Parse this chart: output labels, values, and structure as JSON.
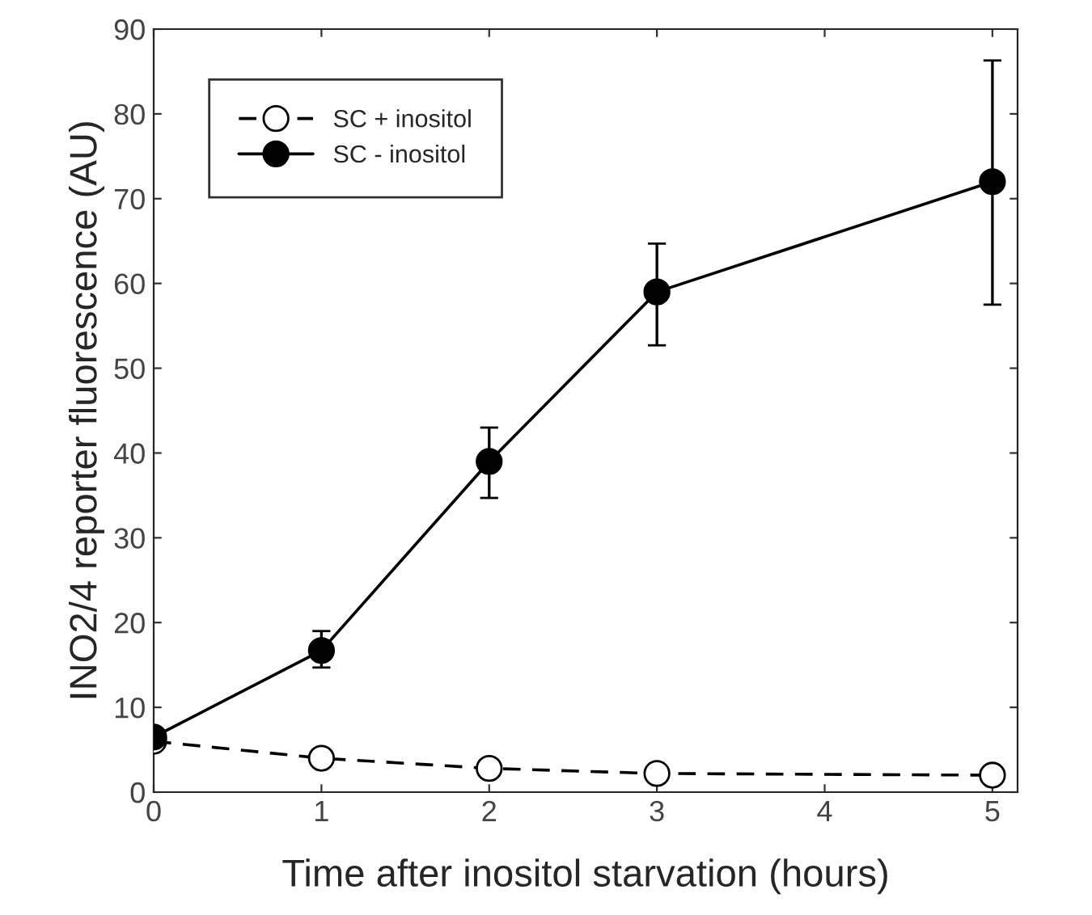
{
  "chart_data": {
    "type": "line",
    "xlabel": "Time after inositol starvation (hours)",
    "ylabel": "INO2/4 reporter fluorescence (AU)",
    "x": [
      0,
      1,
      2,
      3,
      5
    ],
    "series": [
      {
        "name": "SC + inositol",
        "color": "#ffffff",
        "line_style": "dashed",
        "values": [
          6,
          4,
          2.8,
          2.2,
          2.0
        ]
      },
      {
        "name": "SC - inositol",
        "color": "#000000",
        "line_style": "solid",
        "values": [
          6.5,
          16.7,
          39,
          59,
          72
        ],
        "errors": [
          null,
          [
            14.7,
            19
          ],
          [
            34.7,
            43
          ],
          [
            52.7,
            64.7
          ],
          [
            57.5,
            86.3
          ]
        ]
      }
    ],
    "xlim": [
      0,
      5.15
    ],
    "xticks": [
      0,
      1,
      2,
      3,
      4,
      5
    ],
    "ylim": [
      0,
      90
    ],
    "yticks": [
      0,
      10,
      20,
      30,
      40,
      50,
      60,
      70,
      80,
      90
    ],
    "marker": "circle",
    "grid": false,
    "legend": "top left"
  }
}
